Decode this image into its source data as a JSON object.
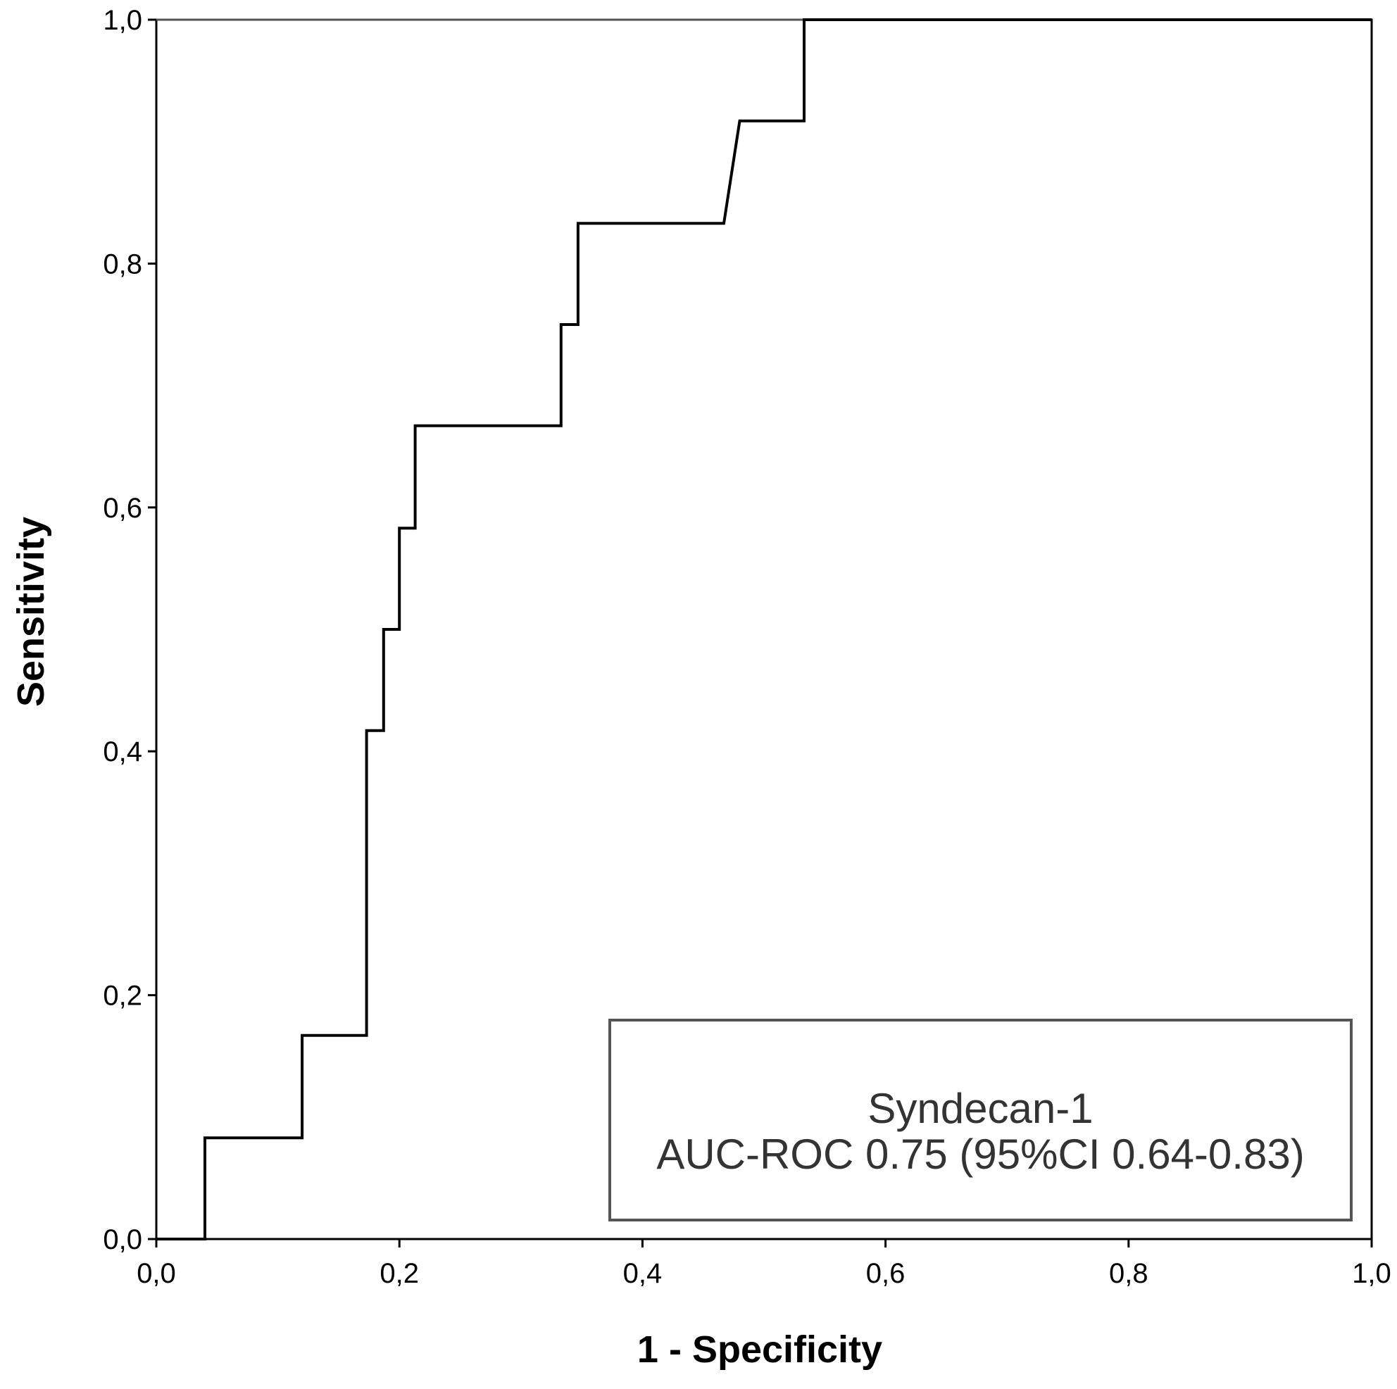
{
  "chart_data": {
    "type": "line",
    "xlabel": "1 - Specificity",
    "ylabel": "Sensitivity",
    "xlim": [
      0,
      1
    ],
    "ylim": [
      0,
      1
    ],
    "x_ticks": [
      0,
      0.2,
      0.4,
      0.6,
      0.8,
      1.0
    ],
    "y_ticks": [
      0,
      0.2,
      0.4,
      0.6,
      0.8,
      1.0
    ],
    "x_tick_labels": [
      "0,0",
      "0,2",
      "0,4",
      "0,6",
      "0,8",
      "1,0"
    ],
    "y_tick_labels": [
      "0,0",
      "0,2",
      "0,4",
      "0,6",
      "0,8",
      "1,0"
    ],
    "grid": false,
    "series": [
      {
        "name": "Syndecan-1",
        "x": [
          0.0,
          0.04,
          0.04,
          0.12,
          0.12,
          0.173,
          0.173,
          0.187,
          0.187,
          0.2,
          0.2,
          0.213,
          0.213,
          0.333,
          0.333,
          0.347,
          0.347,
          0.467,
          0.48,
          0.533,
          0.533,
          1.0
        ],
        "y": [
          0.0,
          0.0,
          0.083,
          0.083,
          0.167,
          0.167,
          0.417,
          0.417,
          0.5,
          0.5,
          0.583,
          0.583,
          0.667,
          0.667,
          0.75,
          0.75,
          0.833,
          0.833,
          0.917,
          0.917,
          1.0,
          1.0
        ]
      }
    ],
    "reference_line": {
      "x": [
        0,
        1
      ],
      "y": [
        1,
        1
      ]
    },
    "legend": {
      "placement": "bottom-right",
      "lines": [
        "Syndecan-1",
        "AUC-ROC 0.75 (95%CI 0.64-0.83)"
      ]
    }
  }
}
